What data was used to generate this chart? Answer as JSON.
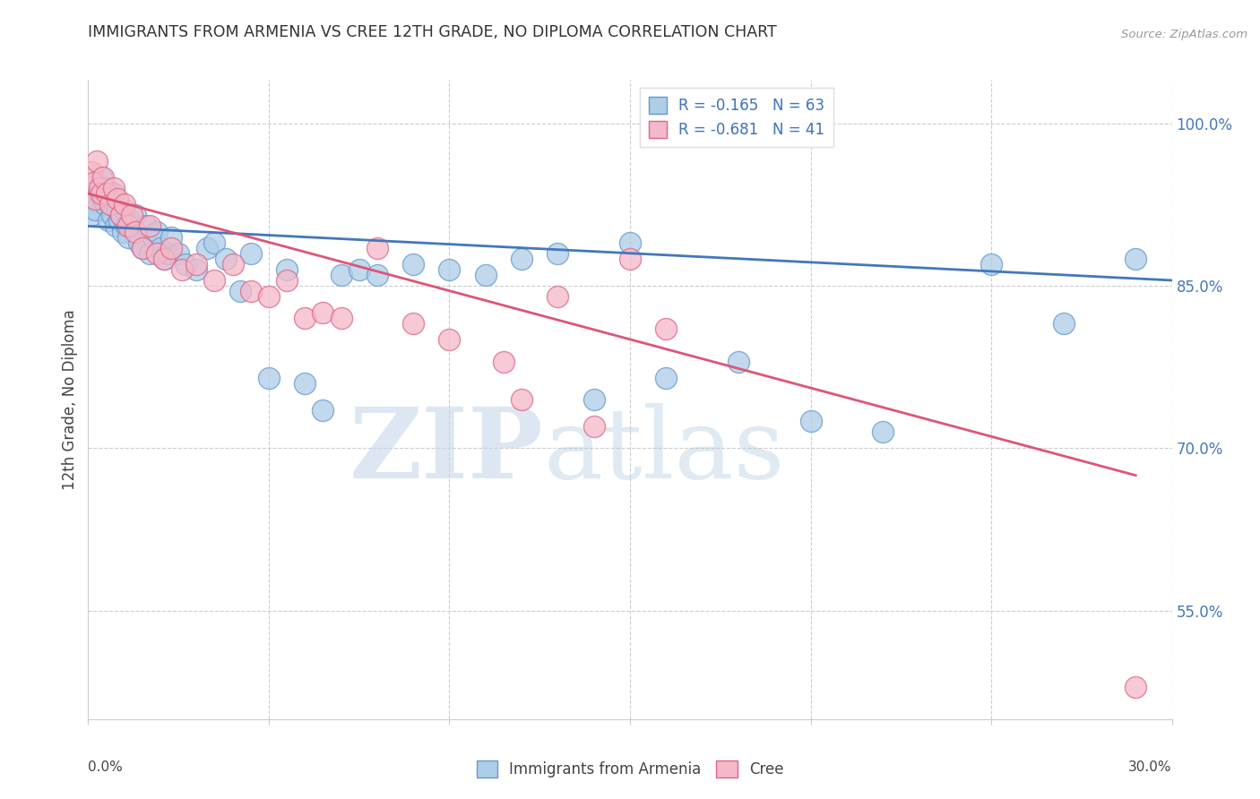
{
  "title": "IMMIGRANTS FROM ARMENIA VS CREE 12TH GRADE, NO DIPLOMA CORRELATION CHART",
  "source": "Source: ZipAtlas.com",
  "ylabel": "12th Grade, No Diploma",
  "y_ticks": [
    100.0,
    85.0,
    70.0,
    55.0
  ],
  "y_tick_labels": [
    "100.0%",
    "85.0%",
    "70.0%",
    "55.0%"
  ],
  "xlim": [
    0.0,
    30.0
  ],
  "ylim": [
    45.0,
    104.0
  ],
  "blue_label": "Immigrants from Armenia",
  "pink_label": "Cree",
  "blue_R": -0.165,
  "blue_N": 63,
  "pink_R": -0.681,
  "pink_N": 41,
  "blue_color": "#AECDE8",
  "pink_color": "#F4B8C8",
  "blue_edge_color": "#6699CC",
  "pink_edge_color": "#DD6688",
  "blue_line_color": "#4477BB",
  "pink_line_color": "#DD5577",
  "title_color": "#333333",
  "source_color": "#999999",
  "tick_label_color": "#4477BB",
  "axis_label_color": "#444444",
  "grid_color": "#CCCCCC",
  "watermark_zip_color": "#C5D8EC",
  "watermark_atlas_color": "#A8C4DC",
  "blue_x": [
    0.1,
    0.15,
    0.2,
    0.25,
    0.3,
    0.35,
    0.4,
    0.45,
    0.5,
    0.55,
    0.6,
    0.65,
    0.7,
    0.75,
    0.8,
    0.85,
    0.9,
    0.95,
    1.0,
    1.05,
    1.1,
    1.15,
    1.2,
    1.3,
    1.4,
    1.5,
    1.6,
    1.7,
    1.8,
    1.9,
    2.0,
    2.1,
    2.2,
    2.3,
    2.5,
    2.7,
    3.0,
    3.3,
    3.5,
    3.8,
    4.2,
    4.5,
    5.0,
    5.5,
    6.0,
    6.5,
    7.0,
    7.5,
    8.0,
    9.0,
    10.0,
    11.0,
    12.0,
    13.0,
    14.0,
    15.0,
    16.0,
    18.0,
    20.0,
    22.0,
    25.0,
    27.0,
    29.0
  ],
  "blue_y": [
    91.5,
    93.0,
    92.0,
    94.5,
    93.5,
    95.0,
    93.0,
    92.5,
    94.0,
    91.0,
    92.5,
    91.5,
    93.5,
    90.5,
    92.0,
    91.0,
    91.5,
    90.0,
    92.0,
    90.5,
    89.5,
    91.0,
    90.5,
    91.5,
    89.0,
    88.5,
    90.5,
    88.0,
    89.5,
    90.0,
    88.5,
    87.5,
    88.0,
    89.5,
    88.0,
    87.0,
    86.5,
    88.5,
    89.0,
    87.5,
    84.5,
    88.0,
    76.5,
    86.5,
    76.0,
    73.5,
    86.0,
    86.5,
    86.0,
    87.0,
    86.5,
    86.0,
    87.5,
    88.0,
    74.5,
    89.0,
    76.5,
    78.0,
    72.5,
    71.5,
    87.0,
    81.5,
    87.5
  ],
  "pink_x": [
    0.1,
    0.15,
    0.2,
    0.25,
    0.3,
    0.35,
    0.4,
    0.5,
    0.6,
    0.7,
    0.8,
    0.9,
    1.0,
    1.1,
    1.2,
    1.3,
    1.5,
    1.7,
    1.9,
    2.1,
    2.3,
    2.6,
    3.0,
    3.5,
    4.0,
    4.5,
    5.0,
    5.5,
    6.0,
    6.5,
    7.0,
    8.0,
    9.0,
    10.0,
    11.5,
    12.0,
    13.0,
    14.0,
    15.0,
    16.0,
    29.0
  ],
  "pink_y": [
    95.5,
    94.5,
    93.0,
    96.5,
    94.0,
    93.5,
    95.0,
    93.5,
    92.5,
    94.0,
    93.0,
    91.5,
    92.5,
    90.5,
    91.5,
    90.0,
    88.5,
    90.5,
    88.0,
    87.5,
    88.5,
    86.5,
    87.0,
    85.5,
    87.0,
    84.5,
    84.0,
    85.5,
    82.0,
    82.5,
    82.0,
    88.5,
    81.5,
    80.0,
    78.0,
    74.5,
    84.0,
    72.0,
    87.5,
    81.0,
    48.0
  ],
  "blue_line_x0": 0.0,
  "blue_line_x1": 30.0,
  "blue_line_y0": 90.5,
  "blue_line_y1": 85.5,
  "pink_line_x0": 0.0,
  "pink_line_x1": 29.0,
  "pink_line_y0": 93.5,
  "pink_line_y1": 67.5
}
